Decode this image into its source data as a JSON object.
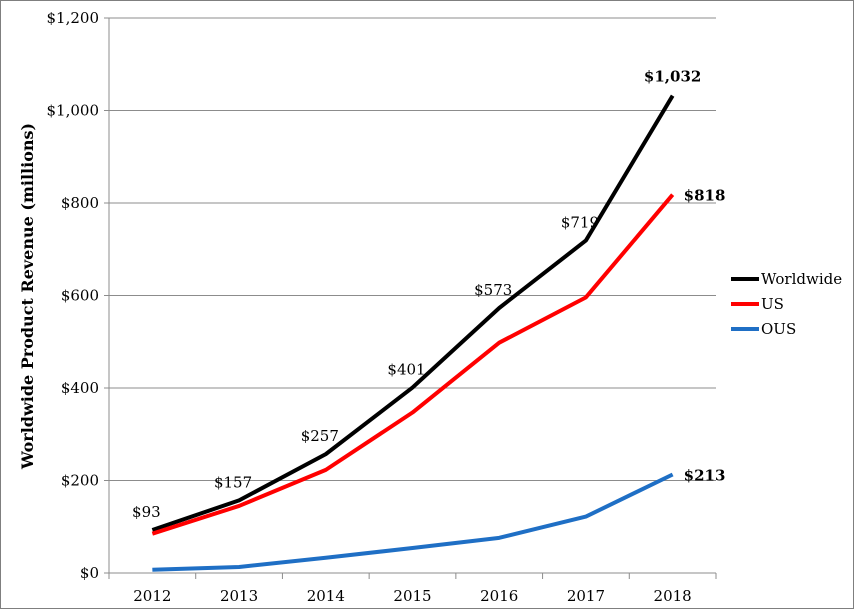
{
  "chart_data": {
    "type": "line",
    "title": "",
    "xlabel": "",
    "ylabel": "Worldwide Product Revenue (millions)",
    "x": [
      "2012",
      "2013",
      "2014",
      "2015",
      "2016",
      "2017",
      "2018"
    ],
    "ylim": [
      0,
      1200
    ],
    "y_ticks": [
      0,
      200,
      400,
      600,
      800,
      1000,
      1200
    ],
    "y_tick_labels": [
      "$0",
      "$200",
      "$400",
      "$600",
      "$800",
      "$1,000",
      "$1,200"
    ],
    "grid": "horizontal",
    "legend_position": "right",
    "series": [
      {
        "name": "Worldwide",
        "color": "#000000",
        "values": [
          93,
          157,
          257,
          401,
          573,
          719,
          1032
        ],
        "labels": [
          "$93",
          "$157",
          "$257",
          "$401",
          "$573",
          "$719",
          "$1,032"
        ]
      },
      {
        "name": "US",
        "color": "#ff0000",
        "values": [
          85,
          145,
          223,
          347,
          498,
          596,
          818
        ],
        "labels": [
          "",
          "",
          "",
          "",
          "",
          "",
          "$818"
        ]
      },
      {
        "name": "OUS",
        "color": "#1f6fc5",
        "values": [
          7,
          13,
          33,
          54,
          76,
          122,
          213
        ],
        "labels": [
          "",
          "",
          "",
          "",
          "",
          "",
          "$213"
        ]
      }
    ]
  }
}
